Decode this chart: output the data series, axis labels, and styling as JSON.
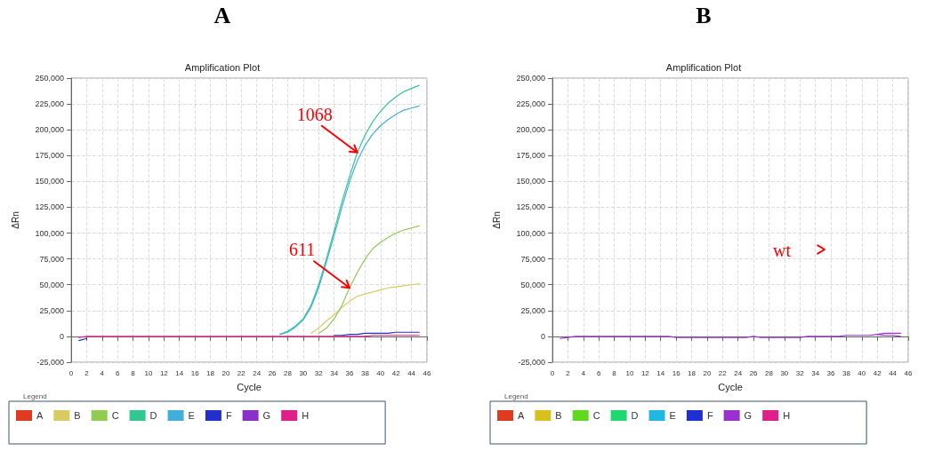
{
  "chart_data": [
    {
      "type": "line",
      "title": "A",
      "subtitle": "Amplification Plot",
      "xlabel": "Cycle",
      "ylabel": "ΔRn",
      "legend_title": "Legend",
      "legend": "bottom",
      "grid": true,
      "marker": "none",
      "line_style": "solid",
      "x": [
        1,
        2,
        3,
        4,
        5,
        6,
        7,
        8,
        9,
        10,
        11,
        12,
        13,
        14,
        15,
        16,
        17,
        18,
        19,
        20,
        21,
        22,
        23,
        24,
        25,
        26,
        27,
        28,
        29,
        30,
        31,
        32,
        33,
        34,
        35,
        36,
        37,
        38,
        39,
        40,
        41,
        42,
        43,
        44,
        45
      ],
      "xlim": [
        0,
        46
      ],
      "xticks": [
        0,
        2,
        4,
        6,
        8,
        10,
        12,
        14,
        16,
        18,
        20,
        22,
        24,
        26,
        28,
        30,
        32,
        34,
        36,
        38,
        40,
        42,
        44,
        46
      ],
      "ylim": [
        -25000,
        250000
      ],
      "yticks": [
        {
          "value": -25000,
          "label": "-25,000"
        },
        0,
        {
          "value": 25000,
          "label": "25,000"
        },
        {
          "value": 50000,
          "label": "50,000"
        },
        {
          "value": 75000,
          "label": "75,000"
        },
        {
          "value": 100000,
          "label": "100,000"
        },
        {
          "value": 125000,
          "label": "125,000"
        },
        {
          "value": 150000,
          "label": "150,000"
        },
        {
          "value": 175000,
          "label": "175,000"
        },
        {
          "value": 200000,
          "label": "200,000"
        },
        {
          "value": 225000,
          "label": "225,000"
        },
        {
          "value": 250000,
          "label": "250,000"
        }
      ],
      "annotations": [
        {
          "text": "1068",
          "x": 37,
          "y": 178000
        },
        {
          "text": "611",
          "x": 36,
          "y": 47000
        }
      ],
      "series": [
        {
          "name": "A",
          "color": "#e03a20",
          "values": [
            null,
            null,
            null,
            null,
            null,
            null,
            null,
            null,
            null,
            null,
            null,
            null,
            null,
            null,
            null,
            null,
            null,
            null,
            null,
            null,
            null,
            null,
            null,
            null,
            null,
            null,
            null,
            null,
            null,
            null,
            null,
            null,
            null,
            null,
            null,
            null,
            null,
            null,
            null,
            null,
            null,
            null,
            null,
            null,
            null
          ]
        },
        {
          "name": "B",
          "color": "#d8cc60",
          "values": [
            null,
            null,
            null,
            null,
            null,
            null,
            null,
            null,
            null,
            null,
            null,
            null,
            null,
            null,
            null,
            null,
            null,
            null,
            null,
            null,
            null,
            null,
            null,
            null,
            null,
            null,
            null,
            null,
            null,
            null,
            3000,
            8000,
            15000,
            21000,
            28000,
            34000,
            39000,
            41000,
            43000,
            45000,
            47000,
            48000,
            49000,
            50000,
            51000
          ]
        },
        {
          "name": "C",
          "color": "#90cc50",
          "values": [
            null,
            null,
            null,
            null,
            null,
            null,
            null,
            null,
            null,
            null,
            null,
            null,
            null,
            null,
            null,
            null,
            null,
            null,
            null,
            null,
            null,
            null,
            null,
            null,
            null,
            null,
            null,
            null,
            null,
            null,
            null,
            3000,
            8000,
            17000,
            30000,
            47000,
            62000,
            75000,
            85000,
            91000,
            96000,
            100000,
            103000,
            105000,
            107000
          ]
        },
        {
          "name": "D",
          "color": "#30c890",
          "values": [
            null,
            null,
            null,
            null,
            null,
            null,
            null,
            null,
            null,
            null,
            null,
            null,
            null,
            null,
            null,
            null,
            null,
            null,
            null,
            null,
            null,
            null,
            null,
            null,
            null,
            null,
            2000,
            5000,
            10000,
            17000,
            30000,
            50000,
            75000,
            102000,
            130000,
            155000,
            178000,
            195000,
            208000,
            218000,
            226000,
            232000,
            237000,
            240000,
            243000
          ]
        },
        {
          "name": "E",
          "color": "#40b0d8",
          "values": [
            null,
            null,
            null,
            null,
            null,
            null,
            null,
            null,
            null,
            null,
            null,
            null,
            null,
            null,
            null,
            null,
            null,
            null,
            null,
            null,
            null,
            null,
            null,
            null,
            null,
            null,
            2000,
            4000,
            9000,
            16000,
            28000,
            47000,
            72000,
            98000,
            125000,
            150000,
            170000,
            185000,
            196000,
            204000,
            210000,
            215000,
            219000,
            221000,
            223000
          ]
        },
        {
          "name": "F",
          "color": "#2030c8",
          "values": [
            -4000,
            -2000,
            null,
            null,
            null,
            null,
            null,
            null,
            null,
            null,
            null,
            null,
            null,
            null,
            null,
            null,
            null,
            null,
            null,
            null,
            null,
            null,
            null,
            null,
            null,
            null,
            null,
            null,
            null,
            null,
            null,
            null,
            null,
            1000,
            1000,
            2000,
            2000,
            3000,
            3000,
            3000,
            3000,
            4000,
            4000,
            4000,
            4000
          ]
        },
        {
          "name": "G",
          "color": "#8a30c8",
          "values": [
            null,
            null,
            null,
            null,
            null,
            null,
            null,
            null,
            null,
            null,
            null,
            null,
            null,
            null,
            null,
            null,
            null,
            null,
            null,
            null,
            null,
            null,
            null,
            null,
            null,
            null,
            null,
            null,
            null,
            null,
            null,
            null,
            null,
            null,
            null,
            null,
            null,
            null,
            null,
            null,
            null,
            null,
            null,
            null,
            null
          ]
        },
        {
          "name": "H",
          "color": "#e0208a",
          "values": [
            -1000,
            0,
            0,
            0,
            0,
            0,
            0,
            0,
            0,
            0,
            0,
            0,
            0,
            0,
            0,
            0,
            0,
            0,
            0,
            0,
            0,
            0,
            0,
            0,
            0,
            0,
            0,
            0,
            0,
            0,
            0,
            0,
            0,
            0,
            0,
            0,
            0,
            0,
            1000,
            1000,
            1000,
            1000,
            1000,
            1000,
            1000
          ]
        }
      ]
    },
    {
      "type": "line",
      "title": "B",
      "subtitle": "Amplification Plot",
      "xlabel": "Cycle",
      "ylabel": "ΔRn",
      "legend_title": "Legend",
      "legend": "bottom",
      "grid": true,
      "marker": "none",
      "line_style": "solid",
      "x": [
        1,
        2,
        3,
        4,
        5,
        6,
        7,
        8,
        9,
        10,
        11,
        12,
        13,
        14,
        15,
        16,
        17,
        18,
        19,
        20,
        21,
        22,
        23,
        24,
        25,
        26,
        27,
        28,
        29,
        30,
        31,
        32,
        33,
        34,
        35,
        36,
        37,
        38,
        39,
        40,
        41,
        42,
        43,
        44,
        45
      ],
      "xlim": [
        0,
        46
      ],
      "xticks": [
        0,
        2,
        4,
        6,
        8,
        10,
        12,
        14,
        16,
        18,
        20,
        22,
        24,
        26,
        28,
        30,
        32,
        34,
        36,
        38,
        40,
        42,
        44,
        46
      ],
      "ylim": [
        -25000,
        250000
      ],
      "yticks": [
        {
          "value": -25000,
          "label": "-25,000"
        },
        0,
        {
          "value": 25000,
          "label": "25,000"
        },
        {
          "value": 50000,
          "label": "50,000"
        },
        {
          "value": 75000,
          "label": "75,000"
        },
        {
          "value": 100000,
          "label": "100,000"
        },
        {
          "value": 125000,
          "label": "125,000"
        },
        {
          "value": 150000,
          "label": "150,000"
        },
        {
          "value": 175000,
          "label": "175,000"
        },
        {
          "value": 200000,
          "label": "200,000"
        },
        {
          "value": 225000,
          "label": "225,000"
        },
        {
          "value": 250000,
          "label": "250,000"
        }
      ],
      "annotations": [
        "wt"
      ],
      "series": [
        {
          "name": "A",
          "color": "#e03a20",
          "values": [
            null,
            null,
            null,
            null,
            null,
            null,
            null,
            null,
            null,
            null,
            null,
            null,
            null,
            null,
            null,
            null,
            null,
            null,
            null,
            null,
            null,
            null,
            null,
            null,
            null,
            null,
            null,
            null,
            null,
            null,
            null,
            null,
            null,
            null,
            null,
            null,
            null,
            null,
            null,
            null,
            null,
            null,
            null,
            null,
            null
          ]
        },
        {
          "name": "B",
          "color": "#d8c020",
          "values": [
            null,
            null,
            null,
            null,
            null,
            null,
            null,
            null,
            null,
            null,
            null,
            null,
            null,
            null,
            null,
            null,
            null,
            null,
            null,
            null,
            null,
            null,
            null,
            null,
            null,
            null,
            null,
            null,
            null,
            null,
            null,
            null,
            null,
            null,
            null,
            null,
            null,
            null,
            null,
            null,
            null,
            null,
            null,
            null,
            null
          ]
        },
        {
          "name": "C",
          "color": "#60d820",
          "values": [
            null,
            null,
            null,
            null,
            null,
            null,
            null,
            null,
            null,
            null,
            null,
            null,
            null,
            null,
            null,
            null,
            null,
            null,
            null,
            null,
            null,
            null,
            null,
            null,
            null,
            null,
            null,
            null,
            null,
            null,
            null,
            null,
            null,
            null,
            null,
            null,
            null,
            null,
            null,
            null,
            null,
            null,
            null,
            null,
            null
          ]
        },
        {
          "name": "D",
          "color": "#20d870",
          "values": [
            null,
            null,
            null,
            null,
            null,
            null,
            null,
            null,
            null,
            null,
            null,
            null,
            null,
            null,
            null,
            null,
            null,
            null,
            null,
            null,
            null,
            null,
            null,
            null,
            null,
            null,
            null,
            null,
            null,
            null,
            null,
            null,
            null,
            null,
            null,
            null,
            null,
            null,
            null,
            null,
            null,
            null,
            null,
            null,
            null
          ]
        },
        {
          "name": "E",
          "color": "#20b8e0",
          "values": [
            null,
            null,
            null,
            null,
            null,
            null,
            null,
            null,
            null,
            null,
            null,
            null,
            null,
            null,
            null,
            null,
            null,
            null,
            null,
            null,
            null,
            null,
            null,
            null,
            null,
            null,
            null,
            null,
            null,
            null,
            null,
            null,
            null,
            null,
            null,
            null,
            null,
            null,
            null,
            null,
            null,
            null,
            null,
            null,
            null
          ]
        },
        {
          "name": "F",
          "color": "#2030d0",
          "values": [
            null,
            null,
            null,
            null,
            null,
            null,
            null,
            null,
            null,
            null,
            null,
            null,
            null,
            null,
            null,
            null,
            null,
            null,
            null,
            null,
            null,
            null,
            null,
            null,
            null,
            null,
            null,
            null,
            null,
            null,
            null,
            null,
            null,
            null,
            null,
            null,
            null,
            null,
            null,
            null,
            null,
            null,
            null,
            null,
            null
          ]
        },
        {
          "name": "G",
          "color": "#9a30d0",
          "values": [
            -2000,
            -1000,
            0,
            0,
            0,
            0,
            0,
            0,
            0,
            0,
            0,
            0,
            0,
            0,
            0,
            -1000,
            -1000,
            -1000,
            -1000,
            -1000,
            -1000,
            -1000,
            -1000,
            -1000,
            -1000,
            0,
            -1000,
            -1000,
            -1000,
            -1000,
            -1000,
            -1000,
            0,
            0,
            0,
            0,
            0,
            1000,
            1000,
            1000,
            1000,
            2000,
            3000,
            3000,
            3000
          ]
        },
        {
          "color": "#9a30d0",
          "values": [
            null,
            null,
            null,
            null,
            null,
            null,
            null,
            null,
            null,
            null,
            null,
            null,
            null,
            null,
            null,
            null,
            null,
            null,
            null,
            null,
            null,
            null,
            null,
            null,
            null,
            null,
            null,
            null,
            null,
            null,
            null,
            null,
            null,
            null,
            null,
            null,
            null,
            null,
            null,
            null,
            null,
            2000,
            1000,
            1000,
            0
          ]
        },
        {
          "name": "H",
          "color": "#e0208a",
          "values": [
            null,
            null,
            null,
            null,
            null,
            null,
            null,
            null,
            null,
            null,
            null,
            null,
            null,
            null,
            null,
            null,
            null,
            null,
            null,
            null,
            null,
            null,
            null,
            null,
            null,
            null,
            null,
            null,
            null,
            null,
            null,
            null,
            null,
            null,
            null,
            null,
            null,
            null,
            null,
            null,
            null,
            null,
            null,
            null,
            null
          ]
        }
      ]
    }
  ]
}
